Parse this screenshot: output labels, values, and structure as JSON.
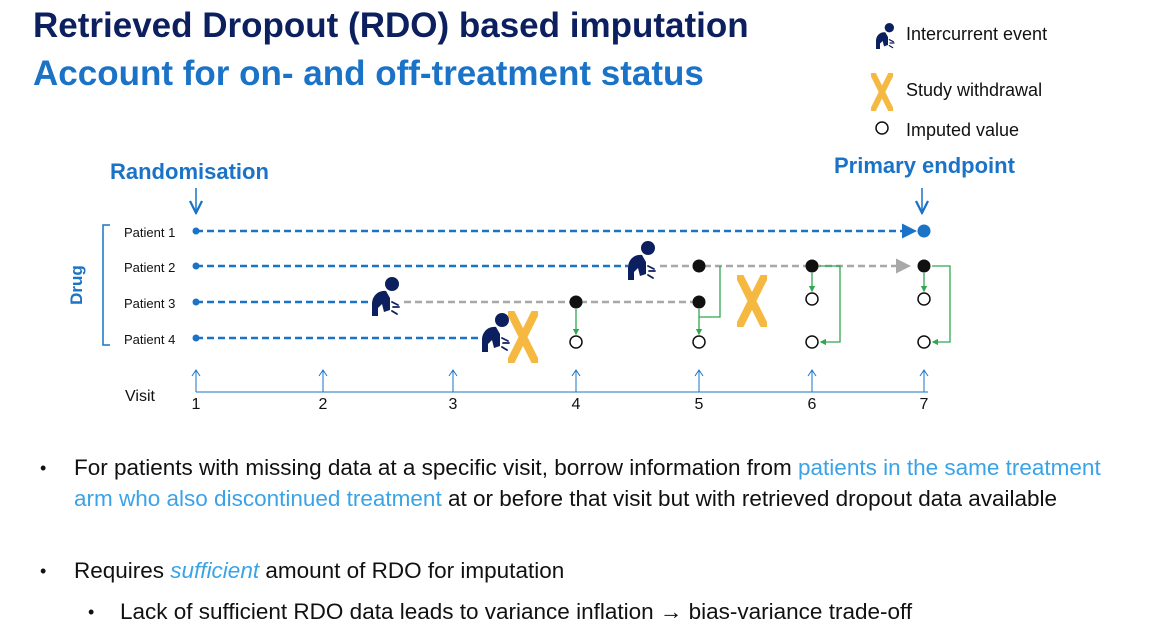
{
  "title": {
    "line1": "Retrieved Dropout (RDO) based imputation",
    "line2": "Account for on- and off-treatment status"
  },
  "legend": {
    "intercurrent": "Intercurrent event",
    "withdrawal": "Study withdrawal",
    "imputed": "Imputed value"
  },
  "labels": {
    "randomisation": "Randomisation",
    "primary_endpoint": "Primary endpoint",
    "group": "Drug",
    "visit_axis": "Visit"
  },
  "patients": [
    "Patient 1",
    "Patient 2",
    "Patient 3",
    "Patient 4"
  ],
  "visits": [
    "1",
    "2",
    "3",
    "4",
    "5",
    "6",
    "7"
  ],
  "colors": {
    "title_dark": "#0c1f5e",
    "accent_blue": "#1a73c7",
    "highlight": "#3aa3e8",
    "withdrawal": "#f5b942",
    "off_treatment": "#a8a8a8",
    "borrow_arrow": "#2fa84f"
  },
  "bullets": {
    "b1_pre": "For patients with missing data at a specific visit, borrow information from ",
    "b1_hl": "patients in the same treatment arm who also discontinued treatment",
    "b1_post": " at or before that visit but with retrieved dropout data available",
    "b2_pre": "Requires ",
    "b2_it": "sufficient",
    "b2_post": " amount of RDO for imputation",
    "b3": "Lack of sufficient RDO data leads to variance inflation → bias-variance trade-off"
  }
}
